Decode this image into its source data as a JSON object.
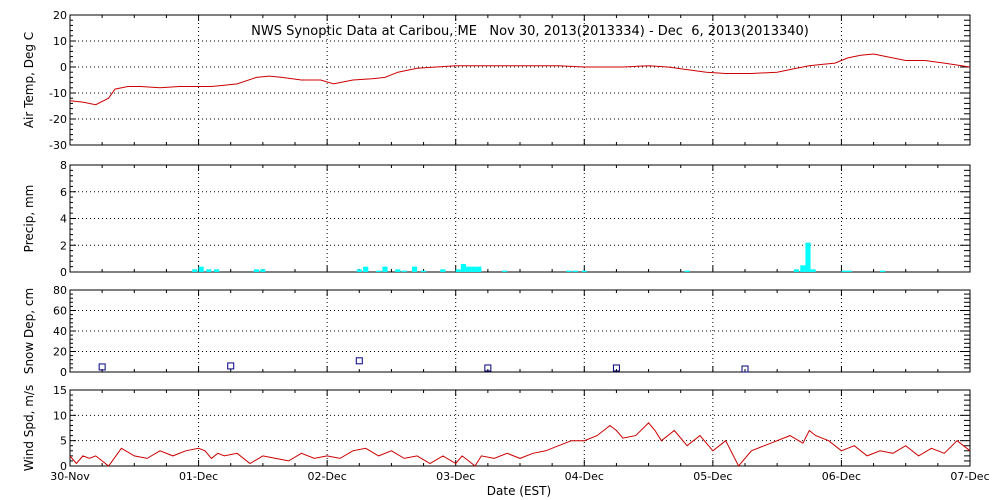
{
  "title": "NWS Synoptic Data at Caribou, ME   Nov 30, 2013(2013334) - Dec  6, 2013(2013340)",
  "x_axis": {
    "label": "Date (EST)",
    "range": [
      0,
      7
    ],
    "ticks": [
      {
        "value": 0,
        "label": "30-Nov"
      },
      {
        "value": 1,
        "label": "01-Dec"
      },
      {
        "value": 2,
        "label": "02-Dec"
      },
      {
        "value": 3,
        "label": "03-Dec"
      },
      {
        "value": 4,
        "label": "04-Dec"
      },
      {
        "value": 5,
        "label": "05-Dec"
      },
      {
        "value": 6,
        "label": "06-Dec"
      },
      {
        "value": 7,
        "label": "07-Dec"
      }
    ]
  },
  "colors": {
    "temperature": "#cc0000",
    "precip": "#00ffff",
    "snow": "#000080",
    "wind": "#cc0000",
    "grid": "#000000"
  },
  "chart_data": [
    {
      "type": "line",
      "ylabel": "Air Temp, Deg C",
      "ylim": [
        -30,
        20
      ],
      "yticks": [
        -30,
        -20,
        -10,
        0,
        10,
        20
      ],
      "x": [
        0,
        0.1,
        0.2,
        0.3,
        0.35,
        0.45,
        0.55,
        0.7,
        0.85,
        1.0,
        1.1,
        1.2,
        1.3,
        1.45,
        1.55,
        1.65,
        1.8,
        1.95,
        2.05,
        2.2,
        2.35,
        2.45,
        2.55,
        2.7,
        2.85,
        3.0,
        3.2,
        3.5,
        3.8,
        4.0,
        4.3,
        4.5,
        4.65,
        4.8,
        4.95,
        5.1,
        5.3,
        5.5,
        5.65,
        5.75,
        5.85,
        5.95,
        6.05,
        6.15,
        6.25,
        6.35,
        6.5,
        6.65,
        6.8,
        7.0
      ],
      "values": [
        -13,
        -13.5,
        -14.5,
        -12,
        -8.5,
        -7.5,
        -7.5,
        -8,
        -7.5,
        -7.5,
        -7.5,
        -7,
        -6.5,
        -4,
        -3.5,
        -4,
        -5,
        -5,
        -6.5,
        -5,
        -4.5,
        -4,
        -2,
        -0.5,
        0,
        0.5,
        0.5,
        0.5,
        0.5,
        0,
        0,
        0.5,
        0,
        -1,
        -2,
        -2.5,
        -2.5,
        -2,
        -0.5,
        0.5,
        1,
        1.5,
        3.5,
        4.5,
        5,
        4,
        2.5,
        2.5,
        1.5,
        0
      ]
    },
    {
      "type": "bar",
      "ylabel": "Precip, mm",
      "ylim": [
        0,
        8
      ],
      "yticks": [
        0,
        2,
        4,
        6,
        8
      ],
      "bar_width": 0.04,
      "x": [
        0.97,
        1.02,
        1.08,
        1.14,
        1.45,
        1.5,
        2.25,
        2.3,
        2.4,
        2.45,
        2.55,
        2.6,
        2.68,
        2.75,
        2.9,
        3.02,
        3.06,
        3.1,
        3.14,
        3.18,
        3.38,
        3.88,
        3.93,
        4.0,
        4.8,
        5.65,
        5.7,
        5.74,
        5.78,
        6.02,
        6.06,
        6.32
      ],
      "values": [
        0.2,
        0.4,
        0.2,
        0.2,
        0.2,
        0.2,
        0.2,
        0.4,
        0.1,
        0.4,
        0.2,
        0.1,
        0.4,
        0.1,
        0.2,
        0.2,
        0.6,
        0.4,
        0.4,
        0.4,
        0.1,
        0.1,
        0.1,
        0.1,
        0.1,
        0.2,
        0.5,
        2.2,
        0.2,
        0.1,
        0.1,
        0.1
      ]
    },
    {
      "type": "scatter",
      "ylabel": "Snow Dep, cm",
      "ylim": [
        0,
        80
      ],
      "yticks": [
        0,
        20,
        40,
        60,
        80
      ],
      "x": [
        0.25,
        1.25,
        2.25,
        3.25,
        4.25,
        5.25
      ],
      "values": [
        2,
        3,
        8,
        1,
        1,
        0
      ]
    },
    {
      "type": "line",
      "ylabel": "Wind Spd, m/s",
      "ylim": [
        0,
        15
      ],
      "yticks": [
        0,
        5,
        10,
        15
      ],
      "x": [
        0,
        0.05,
        0.1,
        0.15,
        0.2,
        0.25,
        0.3,
        0.4,
        0.5,
        0.6,
        0.7,
        0.8,
        0.9,
        1.0,
        1.05,
        1.1,
        1.15,
        1.2,
        1.3,
        1.4,
        1.5,
        1.6,
        1.7,
        1.8,
        1.9,
        2.0,
        2.1,
        2.2,
        2.3,
        2.4,
        2.5,
        2.6,
        2.7,
        2.8,
        2.9,
        3.0,
        3.05,
        3.1,
        3.15,
        3.2,
        3.3,
        3.4,
        3.5,
        3.6,
        3.7,
        3.8,
        3.9,
        4.0,
        4.1,
        4.2,
        4.25,
        4.3,
        4.4,
        4.5,
        4.55,
        4.6,
        4.7,
        4.8,
        4.9,
        5.0,
        5.1,
        5.2,
        5.3,
        5.4,
        5.5,
        5.6,
        5.7,
        5.75,
        5.8,
        5.9,
        6.0,
        6.1,
        6.2,
        6.3,
        6.4,
        6.5,
        6.6,
        6.7,
        6.8,
        6.9,
        7.0
      ],
      "values": [
        2,
        0.5,
        2,
        1.5,
        2,
        1,
        0,
        3.5,
        2,
        1.5,
        3,
        2,
        3,
        3.5,
        3,
        1.5,
        2.5,
        2,
        2.5,
        0.5,
        2,
        1.5,
        1,
        2.5,
        1.5,
        2,
        1.5,
        3,
        3.5,
        2,
        3,
        1.5,
        2,
        0.5,
        2,
        0.5,
        2,
        1,
        0,
        2,
        1.5,
        2.5,
        1.5,
        2.5,
        3,
        4,
        5,
        5,
        6,
        8,
        7,
        5.5,
        6,
        8.5,
        7,
        5,
        7,
        4,
        6,
        3,
        5,
        0,
        3,
        4,
        5,
        6,
        4.5,
        7,
        6,
        5,
        3,
        4,
        2,
        3,
        2.5,
        4,
        2,
        3.5,
        2.5,
        5,
        3
      ]
    }
  ]
}
